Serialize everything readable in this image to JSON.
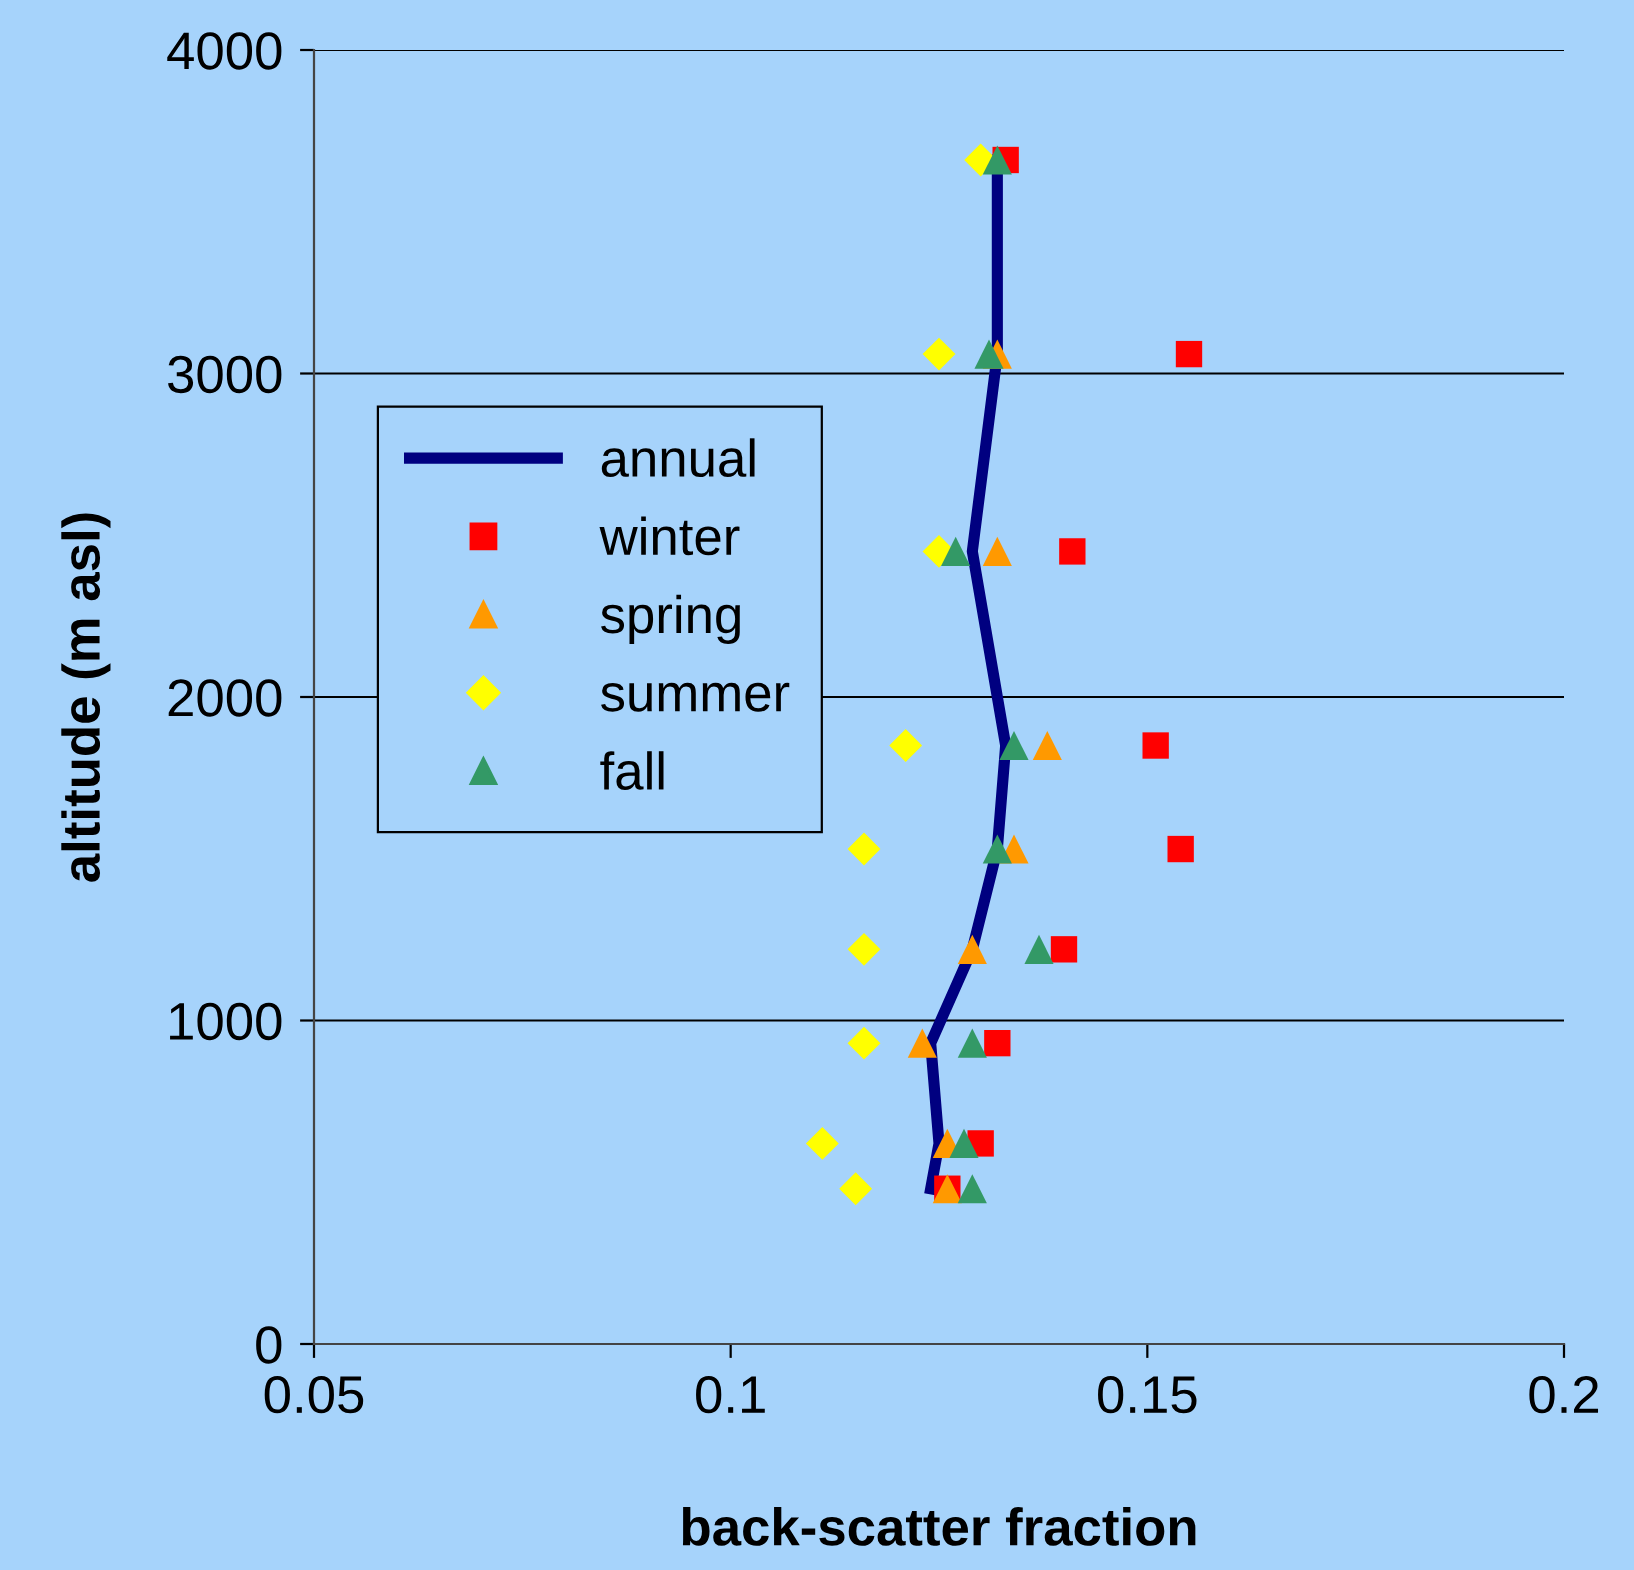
{
  "chart_data": {
    "type": "scatter",
    "xlabel": "back-scatter fraction",
    "ylabel": "altitude (m asl)",
    "xlim": [
      0.05,
      0.2
    ],
    "xticks": [
      0.05,
      0.1,
      0.15,
      0.2
    ],
    "ylim": [
      0,
      4000
    ],
    "yticks": [
      0,
      1000,
      2000,
      3000,
      4000
    ],
    "grid": "y",
    "legend": "left",
    "series": [
      {
        "name": "annual",
        "type": "line",
        "color": "#000080",
        "marker": "none",
        "line_style": "solid",
        "x": [
          0.132,
          0.132,
          0.129,
          0.133,
          0.132,
          0.129,
          0.124,
          0.125,
          0.124
        ],
        "values": [
          3660,
          3060,
          2450,
          1850,
          1530,
          1220,
          930,
          620,
          480
        ]
      },
      {
        "name": "winter",
        "color": "#ff0000",
        "marker": "square",
        "x": [
          0.133,
          0.155,
          0.141,
          0.151,
          0.154,
          0.14,
          0.132,
          0.13,
          0.126
        ],
        "values": [
          3660,
          3060,
          2450,
          1850,
          1530,
          1220,
          930,
          620,
          480
        ]
      },
      {
        "name": "spring",
        "color": "#ff9900",
        "marker": "triangle",
        "x": [
          null,
          0.132,
          0.132,
          0.138,
          0.134,
          0.129,
          0.123,
          0.126,
          0.126
        ],
        "values": [
          null,
          3060,
          2450,
          1850,
          1530,
          1220,
          930,
          620,
          480
        ]
      },
      {
        "name": "summer",
        "color": "#ffff00",
        "marker": "diamond",
        "x": [
          0.13,
          0.125,
          0.125,
          0.121,
          0.116,
          0.116,
          0.116,
          0.111,
          0.115
        ],
        "values": [
          3660,
          3060,
          2450,
          1850,
          1530,
          1220,
          930,
          620,
          480
        ]
      },
      {
        "name": "fall",
        "color": "#339966",
        "marker": "triangle",
        "x": [
          0.132,
          0.131,
          0.127,
          0.134,
          0.132,
          0.137,
          0.129,
          0.128,
          0.129
        ],
        "values": [
          3660,
          3060,
          2450,
          1850,
          1530,
          1220,
          930,
          620,
          480
        ]
      }
    ]
  }
}
